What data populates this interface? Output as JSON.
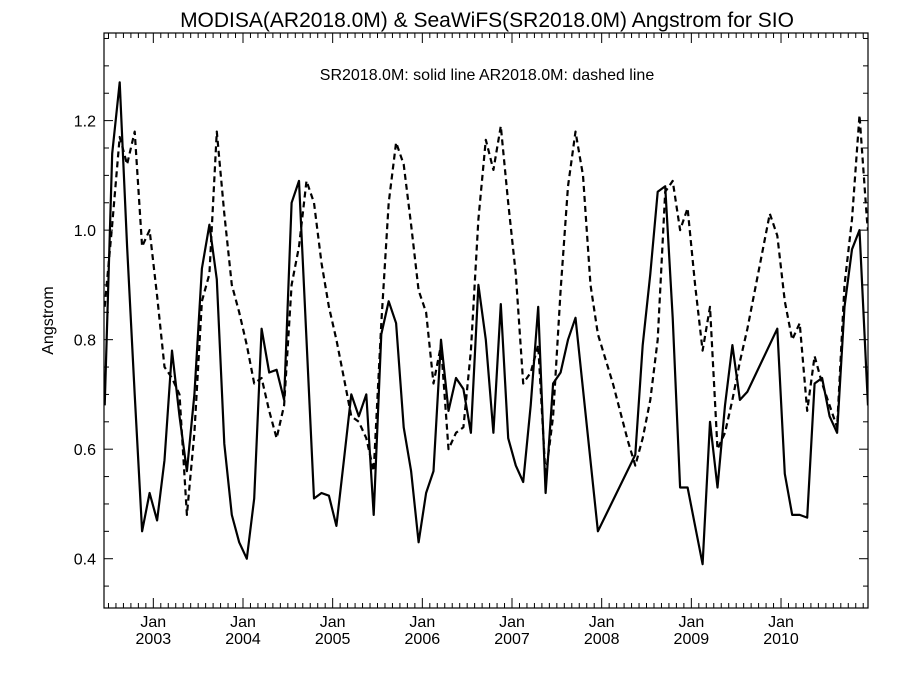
{
  "chart_data": {
    "type": "line",
    "title": "MODISA(AR2018.0M) & SeaWiFS(SR2018.0M)  Angstrom for SIO",
    "subtitle": "SR2018.0M: solid line   AR2018.0M: dashed line",
    "xlabel": "",
    "ylabel": "Angstrom",
    "xlim": [
      2002.45,
      2010.97
    ],
    "ylim": [
      0.31,
      1.36
    ],
    "yticks": [
      0.4,
      0.6,
      0.8,
      1.0,
      1.2
    ],
    "ytick_labels": [
      "0.4",
      "0.6",
      "0.8",
      "1.0",
      "1.2"
    ],
    "xticks": [
      2003,
      2004,
      2005,
      2006,
      2007,
      2008,
      2009,
      2010
    ],
    "xtick_labels_top": [
      "Jan",
      "Jan",
      "Jan",
      "Jan",
      "Jan",
      "Jan",
      "Jan",
      "Jan"
    ],
    "xtick_labels_bottom": [
      "2003",
      "2004",
      "2005",
      "2006",
      "2007",
      "2008",
      "2009",
      "2010"
    ],
    "grid": false,
    "legend": "top-center",
    "series": [
      {
        "label": "SR2018.0M",
        "style": "solid",
        "color": "#000000",
        "points": [
          [
            2002.458,
            0.68
          ],
          [
            2002.542,
            1.14
          ],
          [
            2002.625,
            1.27
          ],
          [
            2002.708,
            0.97
          ],
          [
            2002.792,
            0.7
          ],
          [
            2002.875,
            0.45
          ],
          [
            2002.958,
            0.52
          ],
          [
            2003.042,
            0.47
          ],
          [
            2003.125,
            0.58
          ],
          [
            2003.208,
            0.78
          ],
          [
            2003.292,
            0.66
          ],
          [
            2003.375,
            0.56
          ],
          [
            2003.458,
            0.7
          ],
          [
            2003.542,
            0.93
          ],
          [
            2003.625,
            1.01
          ],
          [
            2003.708,
            0.91
          ],
          [
            2003.792,
            0.61
          ],
          [
            2003.875,
            0.48
          ],
          [
            2003.958,
            0.43
          ],
          [
            2004.042,
            0.4
          ],
          [
            2004.125,
            0.51
          ],
          [
            2004.208,
            0.82
          ],
          [
            2004.292,
            0.74
          ],
          [
            2004.375,
            0.745
          ],
          [
            2004.458,
            0.69
          ],
          [
            2004.542,
            1.05
          ],
          [
            2004.625,
            1.09
          ],
          [
            2004.708,
            0.8
          ],
          [
            2004.792,
            0.51
          ],
          [
            2004.875,
            0.52
          ],
          [
            2004.958,
            0.515
          ],
          [
            2005.042,
            0.46
          ],
          [
            2005.125,
            0.58
          ],
          [
            2005.208,
            0.7
          ],
          [
            2005.292,
            0.66
          ],
          [
            2005.375,
            0.7
          ],
          [
            2005.458,
            0.48
          ],
          [
            2005.542,
            0.81
          ],
          [
            2005.625,
            0.87
          ],
          [
            2005.708,
            0.83
          ],
          [
            2005.792,
            0.64
          ],
          [
            2005.875,
            0.56
          ],
          [
            2005.958,
            0.43
          ],
          [
            2006.042,
            0.52
          ],
          [
            2006.125,
            0.56
          ],
          [
            2006.208,
            0.8
          ],
          [
            2006.292,
            0.67
          ],
          [
            2006.375,
            0.73
          ],
          [
            2006.458,
            0.71
          ],
          [
            2006.542,
            0.63
          ],
          [
            2006.625,
            0.9
          ],
          [
            2006.708,
            0.8
          ],
          [
            2006.792,
            0.63
          ],
          [
            2006.875,
            0.865
          ],
          [
            2006.958,
            0.62
          ],
          [
            2007.042,
            0.57
          ],
          [
            2007.125,
            0.54
          ],
          [
            2007.208,
            0.68
          ],
          [
            2007.292,
            0.86
          ],
          [
            2007.375,
            0.52
          ],
          [
            2007.458,
            0.72
          ],
          [
            2007.542,
            0.74
          ],
          [
            2007.625,
            0.8
          ],
          [
            2007.708,
            0.84
          ],
          [
            2007.958,
            0.45
          ],
          [
            2008.375,
            0.59
          ],
          [
            2008.458,
            0.79
          ],
          [
            2008.542,
            0.92
          ],
          [
            2008.625,
            1.07
          ],
          [
            2008.708,
            1.08
          ],
          [
            2008.792,
            0.84
          ],
          [
            2008.875,
            0.53
          ],
          [
            2008.958,
            0.53
          ],
          [
            2009.042,
            0.46
          ],
          [
            2009.125,
            0.39
          ],
          [
            2009.208,
            0.65
          ],
          [
            2009.292,
            0.53
          ],
          [
            2009.375,
            0.68
          ],
          [
            2009.458,
            0.79
          ],
          [
            2009.542,
            0.69
          ],
          [
            2009.625,
            0.705
          ],
          [
            2009.958,
            0.82
          ],
          [
            2010.042,
            0.555
          ],
          [
            2010.125,
            0.48
          ],
          [
            2010.208,
            0.48
          ],
          [
            2010.292,
            0.475
          ],
          [
            2010.375,
            0.72
          ],
          [
            2010.458,
            0.73
          ],
          [
            2010.542,
            0.66
          ],
          [
            2010.625,
            0.63
          ],
          [
            2010.708,
            0.86
          ],
          [
            2010.792,
            0.965
          ],
          [
            2010.875,
            1.0
          ],
          [
            2010.958,
            0.72
          ],
          [
            2010.97,
            0.68
          ]
        ]
      },
      {
        "label": "AR2018.0M",
        "style": "dashed",
        "color": "#000000",
        "points": [
          [
            2002.458,
            0.86
          ],
          [
            2002.542,
            1.01
          ],
          [
            2002.625,
            1.17
          ],
          [
            2002.708,
            1.12
          ],
          [
            2002.792,
            1.18
          ],
          [
            2002.875,
            0.97
          ],
          [
            2002.958,
            1.0
          ],
          [
            2003.042,
            0.88
          ],
          [
            2003.125,
            0.75
          ],
          [
            2003.208,
            0.73
          ],
          [
            2003.292,
            0.7
          ],
          [
            2003.375,
            0.48
          ],
          [
            2003.458,
            0.63
          ],
          [
            2003.542,
            0.87
          ],
          [
            2003.625,
            0.92
          ],
          [
            2003.708,
            1.18
          ],
          [
            2003.792,
            1.03
          ],
          [
            2003.875,
            0.9
          ],
          [
            2003.958,
            0.85
          ],
          [
            2004.042,
            0.79
          ],
          [
            2004.125,
            0.72
          ],
          [
            2004.208,
            0.73
          ],
          [
            2004.292,
            0.67
          ],
          [
            2004.375,
            0.62
          ],
          [
            2004.458,
            0.68
          ],
          [
            2004.542,
            0.9
          ],
          [
            2004.625,
            0.97
          ],
          [
            2004.708,
            1.09
          ],
          [
            2004.792,
            1.05
          ],
          [
            2004.875,
            0.94
          ],
          [
            2004.958,
            0.86
          ],
          [
            2005.042,
            0.8
          ],
          [
            2005.125,
            0.73
          ],
          [
            2005.208,
            0.66
          ],
          [
            2005.292,
            0.65
          ],
          [
            2005.375,
            0.62
          ],
          [
            2005.458,
            0.56
          ],
          [
            2005.542,
            0.83
          ],
          [
            2005.625,
            1.05
          ],
          [
            2005.708,
            1.16
          ],
          [
            2005.792,
            1.12
          ],
          [
            2005.875,
            1.01
          ],
          [
            2005.958,
            0.89
          ],
          [
            2006.042,
            0.85
          ],
          [
            2006.125,
            0.72
          ],
          [
            2006.208,
            0.79
          ],
          [
            2006.292,
            0.6
          ],
          [
            2006.375,
            0.63
          ],
          [
            2006.458,
            0.64
          ],
          [
            2006.542,
            0.78
          ],
          [
            2006.625,
            1.02
          ],
          [
            2006.708,
            1.165
          ],
          [
            2006.792,
            1.11
          ],
          [
            2006.875,
            1.19
          ],
          [
            2006.958,
            1.05
          ],
          [
            2007.042,
            0.92
          ],
          [
            2007.125,
            0.72
          ],
          [
            2007.208,
            0.74
          ],
          [
            2007.292,
            0.79
          ],
          [
            2007.375,
            0.55
          ],
          [
            2007.458,
            0.66
          ],
          [
            2007.542,
            0.89
          ],
          [
            2007.625,
            1.08
          ],
          [
            2007.708,
            1.18
          ],
          [
            2007.792,
            1.1
          ],
          [
            2007.875,
            0.9
          ],
          [
            2007.958,
            0.81
          ],
          [
            2008.125,
            0.72
          ],
          [
            2008.292,
            0.615
          ],
          [
            2008.375,
            0.57
          ],
          [
            2008.458,
            0.62
          ],
          [
            2008.542,
            0.69
          ],
          [
            2008.625,
            0.8
          ],
          [
            2008.708,
            1.07
          ],
          [
            2008.792,
            1.09
          ],
          [
            2008.875,
            1.0
          ],
          [
            2008.958,
            1.04
          ],
          [
            2009.042,
            0.9
          ],
          [
            2009.125,
            0.78
          ],
          [
            2009.208,
            0.86
          ],
          [
            2009.292,
            0.6
          ],
          [
            2009.375,
            0.63
          ],
          [
            2009.458,
            0.69
          ],
          [
            2009.542,
            0.76
          ],
          [
            2009.625,
            0.82
          ],
          [
            2009.875,
            1.03
          ],
          [
            2009.958,
            0.99
          ],
          [
            2010.042,
            0.87
          ],
          [
            2010.125,
            0.8
          ],
          [
            2010.208,
            0.83
          ],
          [
            2010.292,
            0.67
          ],
          [
            2010.375,
            0.77
          ],
          [
            2010.458,
            0.72
          ],
          [
            2010.542,
            0.68
          ],
          [
            2010.625,
            0.64
          ],
          [
            2010.708,
            0.9
          ],
          [
            2010.792,
            1.02
          ],
          [
            2010.875,
            1.21
          ],
          [
            2010.958,
            1.02
          ],
          [
            2010.97,
            1.0
          ]
        ]
      }
    ]
  }
}
